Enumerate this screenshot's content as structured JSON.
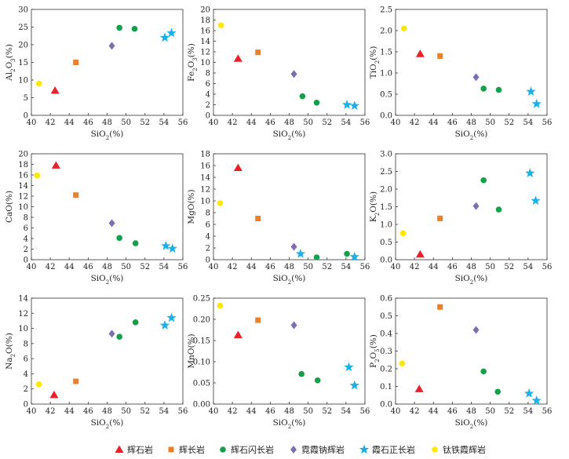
{
  "chart_data": {
    "type": "scatter",
    "x_axis": {
      "label": "SiO2(%)",
      "min": 40,
      "max": 56,
      "ticks": [
        40,
        42,
        44,
        46,
        48,
        50,
        52,
        54,
        56
      ]
    },
    "series": [
      {
        "name": "辉石岩",
        "marker": "triangle",
        "color": "#e8212a"
      },
      {
        "name": "辉长岩",
        "marker": "square",
        "color": "#f07f24"
      },
      {
        "name": "辉石闪长岩",
        "marker": "circle",
        "color": "#13a04a"
      },
      {
        "name": "霓霞钠辉岩",
        "marker": "diamond",
        "color": "#7b6fb0"
      },
      {
        "name": "霞石正长岩",
        "marker": "star",
        "color": "#1ab0e8"
      },
      {
        "name": "钛铁霞辉岩",
        "marker": "circle",
        "color": "#ffe800"
      }
    ],
    "panels": [
      {
        "ylabel": "Al2O3(%)",
        "ylim": [
          0,
          30
        ],
        "yticks": [
          "0",
          "5",
          "10",
          "15",
          "20",
          "25",
          "30"
        ],
        "points": [
          {
            "s": 0,
            "x": 42.5,
            "y": 7
          },
          {
            "s": 1,
            "x": 44.7,
            "y": 15
          },
          {
            "s": 2,
            "x": 49.3,
            "y": 24.8
          },
          {
            "s": 2,
            "x": 50.9,
            "y": 24.5
          },
          {
            "s": 3,
            "x": 48.5,
            "y": 19.7
          },
          {
            "s": 4,
            "x": 54.1,
            "y": 22
          },
          {
            "s": 4,
            "x": 54.8,
            "y": 23.3
          },
          {
            "s": 5,
            "x": 40.8,
            "y": 9
          }
        ]
      },
      {
        "ylabel": "Fe2O3(%)",
        "ylim": [
          0,
          20
        ],
        "yticks": [
          "0",
          "2",
          "4",
          "6",
          "8",
          "10",
          "12",
          "14",
          "16",
          "18",
          "20"
        ],
        "points": [
          {
            "s": 0,
            "x": 42.6,
            "y": 10.7
          },
          {
            "s": 1,
            "x": 44.7,
            "y": 11.9
          },
          {
            "s": 2,
            "x": 49.4,
            "y": 3.6
          },
          {
            "s": 2,
            "x": 50.9,
            "y": 2.4
          },
          {
            "s": 3,
            "x": 48.5,
            "y": 7.8
          },
          {
            "s": 4,
            "x": 54.1,
            "y": 2
          },
          {
            "s": 4,
            "x": 54.9,
            "y": 1.8
          },
          {
            "s": 5,
            "x": 40.8,
            "y": 17
          }
        ]
      },
      {
        "ylabel": "TiO2(%)",
        "ylim": [
          0,
          2.5
        ],
        "yticks": [
          "0.0",
          "0.5",
          "1.0",
          "1.5",
          "2.0",
          "2.5"
        ],
        "points": [
          {
            "s": 0,
            "x": 42.6,
            "y": 1.45
          },
          {
            "s": 1,
            "x": 44.7,
            "y": 1.4
          },
          {
            "s": 2,
            "x": 49.3,
            "y": 0.63
          },
          {
            "s": 2,
            "x": 50.9,
            "y": 0.6
          },
          {
            "s": 3,
            "x": 48.5,
            "y": 0.9
          },
          {
            "s": 4,
            "x": 54.3,
            "y": 0.56
          },
          {
            "s": 4,
            "x": 54.9,
            "y": 0.27
          },
          {
            "s": 5,
            "x": 40.9,
            "y": 2.05
          }
        ]
      },
      {
        "ylabel": "CaO(%)",
        "ylim": [
          0,
          20
        ],
        "yticks": [
          "0",
          "2",
          "4",
          "6",
          "8",
          "10",
          "12",
          "14",
          "16",
          "18",
          "20"
        ],
        "points": [
          {
            "s": 0,
            "x": 42.6,
            "y": 17.8
          },
          {
            "s": 1,
            "x": 44.7,
            "y": 12.2
          },
          {
            "s": 2,
            "x": 49.3,
            "y": 4.1
          },
          {
            "s": 2,
            "x": 51,
            "y": 3.1
          },
          {
            "s": 3,
            "x": 48.5,
            "y": 6.9
          },
          {
            "s": 4,
            "x": 54.2,
            "y": 2.6
          },
          {
            "s": 4,
            "x": 54.9,
            "y": 2.1
          },
          {
            "s": 5,
            "x": 40.6,
            "y": 15.9
          }
        ]
      },
      {
        "ylabel": "MgO(%)",
        "ylim": [
          0,
          18
        ],
        "yticks": [
          "0",
          "2",
          "4",
          "6",
          "8",
          "10",
          "12",
          "14",
          "16",
          "18"
        ],
        "points": [
          {
            "s": 0,
            "x": 42.6,
            "y": 15.6
          },
          {
            "s": 1,
            "x": 44.7,
            "y": 7
          },
          {
            "s": 2,
            "x": 50.9,
            "y": 0.4
          },
          {
            "s": 2,
            "x": 54.1,
            "y": 1
          },
          {
            "s": 3,
            "x": 48.5,
            "y": 2.2
          },
          {
            "s": 4,
            "x": 49.2,
            "y": 1
          },
          {
            "s": 4,
            "x": 54.9,
            "y": 0.5
          },
          {
            "s": 5,
            "x": 40.7,
            "y": 9.6
          }
        ]
      },
      {
        "ylabel": "K2O(%)",
        "ylim": [
          0,
          3.0
        ],
        "yticks": [
          "0.0",
          "0.5",
          "1.0",
          "1.5",
          "2.0",
          "2.5",
          "3.0"
        ],
        "points": [
          {
            "s": 0,
            "x": 42.6,
            "y": 0.15
          },
          {
            "s": 1,
            "x": 44.7,
            "y": 1.17
          },
          {
            "s": 2,
            "x": 49.3,
            "y": 2.25
          },
          {
            "s": 2,
            "x": 50.9,
            "y": 1.42
          },
          {
            "s": 3,
            "x": 48.5,
            "y": 1.52
          },
          {
            "s": 4,
            "x": 54.2,
            "y": 2.45
          },
          {
            "s": 4,
            "x": 54.8,
            "y": 1.67
          },
          {
            "s": 5,
            "x": 40.8,
            "y": 0.75
          }
        ]
      },
      {
        "ylabel": "Na2O(%)",
        "ylim": [
          0,
          14
        ],
        "yticks": [
          "0",
          "2",
          "4",
          "6",
          "8",
          "10",
          "12",
          "14"
        ],
        "points": [
          {
            "s": 0,
            "x": 42.4,
            "y": 1.2
          },
          {
            "s": 1,
            "x": 44.7,
            "y": 3
          },
          {
            "s": 2,
            "x": 49.3,
            "y": 8.9
          },
          {
            "s": 2,
            "x": 51,
            "y": 10.8
          },
          {
            "s": 3,
            "x": 48.5,
            "y": 9.3
          },
          {
            "s": 4,
            "x": 54.1,
            "y": 10.4
          },
          {
            "s": 4,
            "x": 54.8,
            "y": 11.4
          },
          {
            "s": 5,
            "x": 40.8,
            "y": 2.6
          }
        ]
      },
      {
        "ylabel": "MnO(%)",
        "ylim": [
          0,
          0.25
        ],
        "yticks": [
          "0.00",
          "0.05",
          "0.10",
          "0.15",
          "0.20",
          "0.25"
        ],
        "points": [
          {
            "s": 0,
            "x": 42.6,
            "y": 0.163
          },
          {
            "s": 1,
            "x": 44.7,
            "y": 0.198
          },
          {
            "s": 2,
            "x": 49.3,
            "y": 0.071
          },
          {
            "s": 2,
            "x": 51,
            "y": 0.056
          },
          {
            "s": 3,
            "x": 48.5,
            "y": 0.186
          },
          {
            "s": 4,
            "x": 54.3,
            "y": 0.087
          },
          {
            "s": 4,
            "x": 54.9,
            "y": 0.044
          },
          {
            "s": 5,
            "x": 40.7,
            "y": 0.232
          }
        ]
      },
      {
        "ylabel": "P2O5(%)",
        "ylim": [
          0,
          0.6
        ],
        "yticks": [
          "0.0",
          "0.1",
          "0.2",
          "0.3",
          "0.4",
          "0.5",
          "0.6"
        ],
        "points": [
          {
            "s": 0,
            "x": 42.5,
            "y": 0.085
          },
          {
            "s": 1,
            "x": 44.7,
            "y": 0.55
          },
          {
            "s": 2,
            "x": 49.3,
            "y": 0.185
          },
          {
            "s": 2,
            "x": 50.8,
            "y": 0.07
          },
          {
            "s": 3,
            "x": 48.5,
            "y": 0.42
          },
          {
            "s": 4,
            "x": 54.1,
            "y": 0.06
          },
          {
            "s": 4,
            "x": 54.9,
            "y": 0.02
          },
          {
            "s": 5,
            "x": 40.7,
            "y": 0.23
          }
        ]
      }
    ]
  }
}
